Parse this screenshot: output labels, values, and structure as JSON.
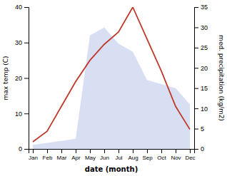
{
  "chart_data": {
    "type": "line",
    "categories": [
      "Jan",
      "Feb",
      "Mar",
      "Apr",
      "May",
      "Jun",
      "Jul",
      "Aug",
      "Sep",
      "Oct",
      "Nov",
      "Dec"
    ],
    "xlabel": "date (month)",
    "ylabel": "max temp (C)",
    "y2label": "med. precipitation (kg/m2)",
    "ylim": [
      0,
      40
    ],
    "yticks": [
      0,
      10,
      20,
      30,
      40
    ],
    "y2lim": [
      0,
      35
    ],
    "y2ticks": [
      0,
      5,
      10,
      15,
      20,
      25,
      30,
      35
    ],
    "grid": false,
    "series": [
      {
        "type": "area",
        "axis": "y2",
        "color": "#b8c4e8",
        "values": [
          1.0,
          1.5,
          2.0,
          2.5,
          28.0,
          30.0,
          26.0,
          24.0,
          17.0,
          16.0,
          15.0,
          11.0
        ]
      },
      {
        "type": "line",
        "color": "#c0392b",
        "values": [
          2.0,
          5.0,
          12.0,
          19.0,
          25.0,
          29.5,
          33.0,
          40.0,
          31.0,
          22.0,
          12.0,
          5.5
        ]
      }
    ]
  }
}
